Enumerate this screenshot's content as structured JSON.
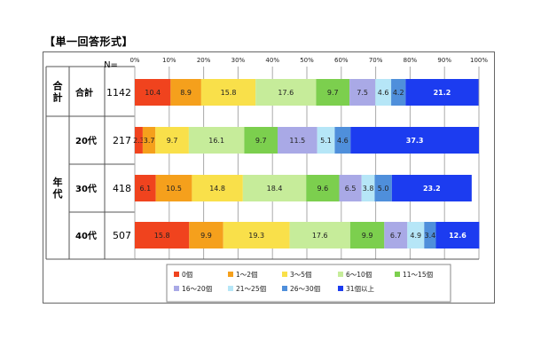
{
  "page_title": "【単一回答形式】",
  "n_header": "N=",
  "chart_data": {
    "type": "bar",
    "stacked": true,
    "orientation": "horizontal",
    "percent_axis_ticks": [
      "0%",
      "10%",
      "20%",
      "30%",
      "40%",
      "50%",
      "60%",
      "70%",
      "80%",
      "90%",
      "100%"
    ],
    "xlim": [
      0,
      100
    ],
    "groups": [
      {
        "label": "合計",
        "rows": [
          "合計"
        ]
      },
      {
        "label": "年代",
        "rows": [
          "20代",
          "30代",
          "40代"
        ]
      }
    ],
    "categories": [
      "合計",
      "20代",
      "30代",
      "40代"
    ],
    "n": [
      "1142",
      "217",
      "418",
      "507"
    ],
    "series": [
      {
        "name": "0個",
        "color": "#f0431e",
        "values": [
          10.4,
          2.3,
          6.1,
          15.8
        ]
      },
      {
        "name": "1～2個",
        "color": "#f5a01c",
        "values": [
          8.9,
          3.7,
          10.5,
          9.9
        ]
      },
      {
        "name": "3～5個",
        "color": "#f9e04a",
        "values": [
          15.8,
          9.7,
          14.8,
          19.3
        ]
      },
      {
        "name": "6～10個",
        "color": "#c6ec9a",
        "values": [
          17.6,
          16.1,
          18.4,
          17.6
        ]
      },
      {
        "name": "11～15個",
        "color": "#7ccf4e",
        "values": [
          9.7,
          9.7,
          9.6,
          9.9
        ]
      },
      {
        "name": "16～20個",
        "color": "#a9a9e6",
        "values": [
          7.5,
          11.5,
          6.5,
          6.7
        ]
      },
      {
        "name": "21～25個",
        "color": "#b6e6f7",
        "values": [
          4.6,
          5.1,
          3.8,
          4.9
        ]
      },
      {
        "name": "26～30個",
        "color": "#4f8fdb",
        "values": [
          4.2,
          4.6,
          5.0,
          3.4
        ]
      },
      {
        "name": "31個以上",
        "color": "#1c3cf0",
        "values": [
          21.2,
          37.3,
          23.2,
          12.6
        ]
      }
    ],
    "data_labels": [
      [
        "10.4",
        "8.9",
        "15.8",
        "17.6",
        "9.7",
        "7.5",
        "4.6",
        "4.2",
        "21.2"
      ],
      [
        "2.3",
        "3.7",
        "9.7",
        "16.1",
        "9.7",
        "11.5",
        "5.1",
        "4.6",
        "37.3"
      ],
      [
        "6.1",
        "10.5",
        "14.8",
        "18.4",
        "9.6",
        "6.5",
        "3.8",
        "5.0",
        "23.2"
      ],
      [
        "15.8",
        "9.9",
        "19.3",
        "17.6",
        "9.9",
        "6.7",
        "4.9",
        "3.4",
        "12.6"
      ]
    ],
    "legend_position": "bottom",
    "grid": true
  }
}
